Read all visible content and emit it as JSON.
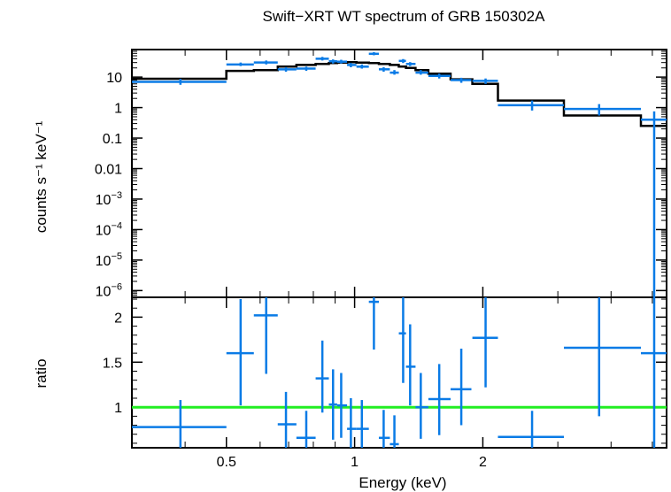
{
  "chart_data": [
    {
      "type": "scatter",
      "title": "Swift−XRT WT spectrum of GRB 150302A",
      "ylabel": "counts s⁻¹ keV⁻¹",
      "xlabel": "Energy (keV)",
      "xscale": "log",
      "yscale": "log",
      "xlim": [
        0.3,
        5.4
      ],
      "ylim": [
        6e-07,
        80
      ],
      "y_ticks": [
        {
          "value": 10,
          "label": "10"
        },
        {
          "value": 1,
          "label": "1"
        },
        {
          "value": 0.1,
          "label": "0.1"
        },
        {
          "value": 0.01,
          "label": "0.01"
        },
        {
          "value": 0.001,
          "base": "10",
          "exp": "−3"
        },
        {
          "value": 0.0001,
          "base": "10",
          "exp": "−4"
        },
        {
          "value": 1e-05,
          "base": "10",
          "exp": "−5"
        },
        {
          "value": 1e-06,
          "base": "10",
          "exp": "−6"
        }
      ],
      "series": [
        {
          "kind": "data",
          "color": "#0a7be6",
          "points": [
            {
              "x": 0.39,
              "xlo": 0.3,
              "xhi": 0.5,
              "y": 7.0,
              "ylo": 5.6,
              "yhi": 8.8
            },
            {
              "x": 0.54,
              "xlo": 0.5,
              "xhi": 0.58,
              "y": 26,
              "ylo": 23,
              "yhi": 30
            },
            {
              "x": 0.62,
              "xlo": 0.58,
              "xhi": 0.66,
              "y": 30,
              "ylo": 26,
              "yhi": 35
            },
            {
              "x": 0.69,
              "xlo": 0.66,
              "xhi": 0.73,
              "y": 18,
              "ylo": 15,
              "yhi": 21
            },
            {
              "x": 0.77,
              "xlo": 0.73,
              "xhi": 0.81,
              "y": 19,
              "ylo": 16,
              "yhi": 22
            },
            {
              "x": 0.84,
              "xlo": 0.81,
              "xhi": 0.87,
              "y": 40,
              "ylo": 35,
              "yhi": 46
            },
            {
              "x": 0.89,
              "xlo": 0.87,
              "xhi": 0.91,
              "y": 33,
              "ylo": 28,
              "yhi": 38
            },
            {
              "x": 0.93,
              "xlo": 0.91,
              "xhi": 0.96,
              "y": 32,
              "ylo": 28,
              "yhi": 37
            },
            {
              "x": 0.98,
              "xlo": 0.96,
              "xhi": 1.01,
              "y": 25,
              "ylo": 21,
              "yhi": 29
            },
            {
              "x": 1.04,
              "xlo": 1.01,
              "xhi": 1.08,
              "y": 22,
              "ylo": 19,
              "yhi": 26
            },
            {
              "x": 1.11,
              "xlo": 1.08,
              "xhi": 1.14,
              "y": 58,
              "ylo": 52,
              "yhi": 66
            },
            {
              "x": 1.17,
              "xlo": 1.14,
              "xhi": 1.21,
              "y": 18,
              "ylo": 15,
              "yhi": 21
            },
            {
              "x": 1.24,
              "xlo": 1.21,
              "xhi": 1.27,
              "y": 14,
              "ylo": 12,
              "yhi": 17
            },
            {
              "x": 1.3,
              "xlo": 1.27,
              "xhi": 1.32,
              "y": 34,
              "ylo": 29,
              "yhi": 39
            },
            {
              "x": 1.35,
              "xlo": 1.32,
              "xhi": 1.39,
              "y": 27,
              "ylo": 23,
              "yhi": 31
            },
            {
              "x": 1.43,
              "xlo": 1.39,
              "xhi": 1.49,
              "y": 14,
              "ylo": 12,
              "yhi": 17
            },
            {
              "x": 1.58,
              "xlo": 1.49,
              "xhi": 1.68,
              "y": 11,
              "ylo": 9,
              "yhi": 13
            },
            {
              "x": 1.78,
              "xlo": 1.68,
              "xhi": 1.88,
              "y": 8,
              "ylo": 6.5,
              "yhi": 9.5
            },
            {
              "x": 2.03,
              "xlo": 1.89,
              "xhi": 2.17,
              "y": 7.5,
              "ylo": 6,
              "yhi": 9
            },
            {
              "x": 2.61,
              "xlo": 2.17,
              "xhi": 3.1,
              "y": 1.2,
              "ylo": 0.8,
              "yhi": 1.7
            },
            {
              "x": 3.75,
              "xlo": 3.1,
              "xhi": 4.7,
              "y": 0.9,
              "ylo": 0.55,
              "yhi": 1.3
            },
            {
              "x": 5.05,
              "xlo": 4.7,
              "xhi": 5.4,
              "y": 0.4,
              "ylo": 6e-07,
              "yhi": 0.75
            }
          ]
        },
        {
          "kind": "model",
          "style": "step",
          "color": "#000000",
          "edges": [
            0.3,
            0.5,
            0.58,
            0.66,
            0.73,
            0.81,
            0.87,
            0.91,
            0.96,
            1.01,
            1.08,
            1.14,
            1.21,
            1.27,
            1.32,
            1.39,
            1.49,
            1.68,
            1.89,
            2.17,
            3.1,
            4.7,
            5.4
          ],
          "values": [
            8.8,
            16,
            17,
            22,
            25,
            27,
            29,
            30,
            31,
            30,
            29,
            27,
            25,
            22,
            20,
            17,
            13,
            8.5,
            6.0,
            1.7,
            0.55,
            0.25
          ]
        }
      ]
    },
    {
      "type": "scatter",
      "ylabel": "ratio",
      "xlabel": "Energy (keV)",
      "xscale": "log",
      "xlim": [
        0.3,
        5.4
      ],
      "ylim": [
        0.55,
        2.22
      ],
      "y_ticks": [
        {
          "value": 1,
          "label": "1"
        },
        {
          "value": 1.5,
          "label": "1.5"
        },
        {
          "value": 2,
          "label": "2"
        }
      ],
      "x_ticks": [
        {
          "value": 0.5,
          "label": "0.5"
        },
        {
          "value": 1,
          "label": "1"
        },
        {
          "value": 2,
          "label": "2"
        }
      ],
      "reference_line": {
        "y": 1,
        "color": "#22ee22"
      },
      "series": [
        {
          "kind": "data",
          "color": "#0a7be6",
          "points": [
            {
              "x": 0.39,
              "xlo": 0.3,
              "xhi": 0.5,
              "y": 0.78,
              "ylo": 0.55,
              "yhi": 1.08
            },
            {
              "x": 0.54,
              "xlo": 0.5,
              "xhi": 0.58,
              "y": 1.6,
              "ylo": 1.02,
              "yhi": 2.2
            },
            {
              "x": 0.62,
              "xlo": 0.58,
              "xhi": 0.66,
              "y": 2.02,
              "ylo": 1.37,
              "yhi": 2.22
            },
            {
              "x": 0.69,
              "xlo": 0.66,
              "xhi": 0.73,
              "y": 0.81,
              "ylo": 0.55,
              "yhi": 1.17
            },
            {
              "x": 0.77,
              "xlo": 0.73,
              "xhi": 0.81,
              "y": 0.66,
              "ylo": 0.55,
              "yhi": 0.96
            },
            {
              "x": 0.84,
              "xlo": 0.81,
              "xhi": 0.87,
              "y": 1.32,
              "ylo": 0.94,
              "yhi": 1.74
            },
            {
              "x": 0.89,
              "xlo": 0.87,
              "xhi": 0.91,
              "y": 1.03,
              "ylo": 0.64,
              "yhi": 1.42
            },
            {
              "x": 0.93,
              "xlo": 0.91,
              "xhi": 0.96,
              "y": 1.02,
              "ylo": 0.66,
              "yhi": 1.38
            },
            {
              "x": 0.98,
              "xlo": 0.96,
              "xhi": 1.01,
              "y": 0.76,
              "ylo": 0.55,
              "yhi": 1.1
            },
            {
              "x": 1.04,
              "xlo": 1.01,
              "xhi": 1.08,
              "y": 0.76,
              "ylo": 0.55,
              "yhi": 1.08
            },
            {
              "x": 1.11,
              "xlo": 1.08,
              "xhi": 1.14,
              "y": 2.17,
              "ylo": 1.64,
              "yhi": 2.22
            },
            {
              "x": 1.17,
              "xlo": 1.14,
              "xhi": 1.21,
              "y": 0.66,
              "ylo": 0.55,
              "yhi": 0.97
            },
            {
              "x": 1.24,
              "xlo": 1.21,
              "xhi": 1.27,
              "y": 0.59,
              "ylo": 0.55,
              "yhi": 0.91
            },
            {
              "x": 1.3,
              "xlo": 1.27,
              "xhi": 1.32,
              "y": 1.82,
              "ylo": 1.27,
              "yhi": 2.22
            },
            {
              "x": 1.35,
              "xlo": 1.32,
              "xhi": 1.39,
              "y": 1.45,
              "ylo": 1.02,
              "yhi": 1.92
            },
            {
              "x": 1.43,
              "xlo": 1.39,
              "xhi": 1.49,
              "y": 1.0,
              "ylo": 0.65,
              "yhi": 1.38
            },
            {
              "x": 1.58,
              "xlo": 1.49,
              "xhi": 1.68,
              "y": 1.09,
              "ylo": 0.69,
              "yhi": 1.48
            },
            {
              "x": 1.78,
              "xlo": 1.68,
              "xhi": 1.88,
              "y": 1.2,
              "ylo": 0.8,
              "yhi": 1.65
            },
            {
              "x": 2.03,
              "xlo": 1.89,
              "xhi": 2.17,
              "y": 1.77,
              "ylo": 1.22,
              "yhi": 2.22
            },
            {
              "x": 2.61,
              "xlo": 2.17,
              "xhi": 3.1,
              "y": 0.67,
              "ylo": 0.55,
              "yhi": 0.96
            },
            {
              "x": 3.75,
              "xlo": 3.1,
              "xhi": 4.7,
              "y": 1.66,
              "ylo": 0.9,
              "yhi": 2.22
            },
            {
              "x": 5.05,
              "xlo": 4.7,
              "xhi": 5.4,
              "y": 1.6,
              "ylo": 0.55,
              "yhi": 2.22
            }
          ]
        }
      ]
    }
  ]
}
